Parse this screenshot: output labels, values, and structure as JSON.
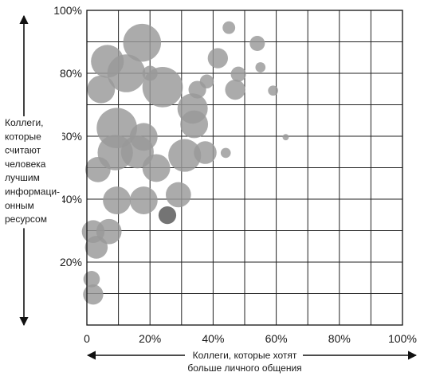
{
  "chart_data": {
    "type": "scatter",
    "variant": "bubble",
    "title": "",
    "xlabel": [
      "Коллеги, которые хотят",
      "больше личного общения"
    ],
    "ylabel": [
      "Коллеги,",
      "которые",
      "считают",
      "человека",
      "лучшим",
      "информаци-",
      "онным",
      "ресурсом"
    ],
    "xlim": [
      0,
      100
    ],
    "ylim": [
      0,
      100
    ],
    "x_ticks": [
      "0",
      "20%",
      "40%",
      "60%",
      "80%",
      "100%"
    ],
    "y_ticks": [
      "20%",
      "40%",
      "60%",
      "80%",
      "100%"
    ],
    "grid": true,
    "grid_step": 10,
    "bubble_color": "#999999",
    "highlight_color": "#555555",
    "points": [
      {
        "x": 17.5,
        "y": 89.7,
        "size": 6.0
      },
      {
        "x": 6.5,
        "y": 83.8,
        "size": 5.2
      },
      {
        "x": 12.5,
        "y": 80.0,
        "size": 6.0
      },
      {
        "x": 20.0,
        "y": 80.0,
        "size": 2.4
      },
      {
        "x": 4.5,
        "y": 74.9,
        "size": 4.4
      },
      {
        "x": 24.0,
        "y": 75.6,
        "size": 6.4
      },
      {
        "x": 9.5,
        "y": 62.6,
        "size": 6.4
      },
      {
        "x": 18.0,
        "y": 59.8,
        "size": 4.4
      },
      {
        "x": 9.0,
        "y": 54.8,
        "size": 5.6
      },
      {
        "x": 16.0,
        "y": 55.0,
        "size": 5.2
      },
      {
        "x": 3.5,
        "y": 49.4,
        "size": 4.0
      },
      {
        "x": 22.0,
        "y": 49.9,
        "size": 4.4
      },
      {
        "x": 31.0,
        "y": 53.9,
        "size": 5.2
      },
      {
        "x": 9.5,
        "y": 39.6,
        "size": 4.4
      },
      {
        "x": 18.0,
        "y": 39.6,
        "size": 4.4
      },
      {
        "x": 29.0,
        "y": 41.4,
        "size": 4.0
      },
      {
        "x": 25.5,
        "y": 34.9,
        "size": 2.8,
        "highlight": true
      },
      {
        "x": 2.0,
        "y": 29.7,
        "size": 3.6
      },
      {
        "x": 7.0,
        "y": 29.7,
        "size": 4.0
      },
      {
        "x": 3.0,
        "y": 24.7,
        "size": 3.6
      },
      {
        "x": 1.5,
        "y": 14.6,
        "size": 2.6
      },
      {
        "x": 2.0,
        "y": 9.7,
        "size": 3.2
      },
      {
        "x": 45.0,
        "y": 94.5,
        "size": 2.0
      },
      {
        "x": 54.0,
        "y": 89.5,
        "size": 2.4
      },
      {
        "x": 41.5,
        "y": 84.8,
        "size": 3.2
      },
      {
        "x": 55.0,
        "y": 81.9,
        "size": 1.6
      },
      {
        "x": 48.0,
        "y": 79.7,
        "size": 2.4
      },
      {
        "x": 38.0,
        "y": 77.4,
        "size": 2.2
      },
      {
        "x": 35.0,
        "y": 74.8,
        "size": 2.8
      },
      {
        "x": 47.0,
        "y": 74.8,
        "size": 3.2
      },
      {
        "x": 59.0,
        "y": 74.5,
        "size": 1.6
      },
      {
        "x": 33.5,
        "y": 68.8,
        "size": 4.8
      },
      {
        "x": 34.0,
        "y": 63.8,
        "size": 4.4
      },
      {
        "x": 63.0,
        "y": 59.7,
        "size": 1.0
      },
      {
        "x": 37.5,
        "y": 54.8,
        "size": 3.6
      },
      {
        "x": 44.0,
        "y": 54.7,
        "size": 1.6
      }
    ]
  }
}
